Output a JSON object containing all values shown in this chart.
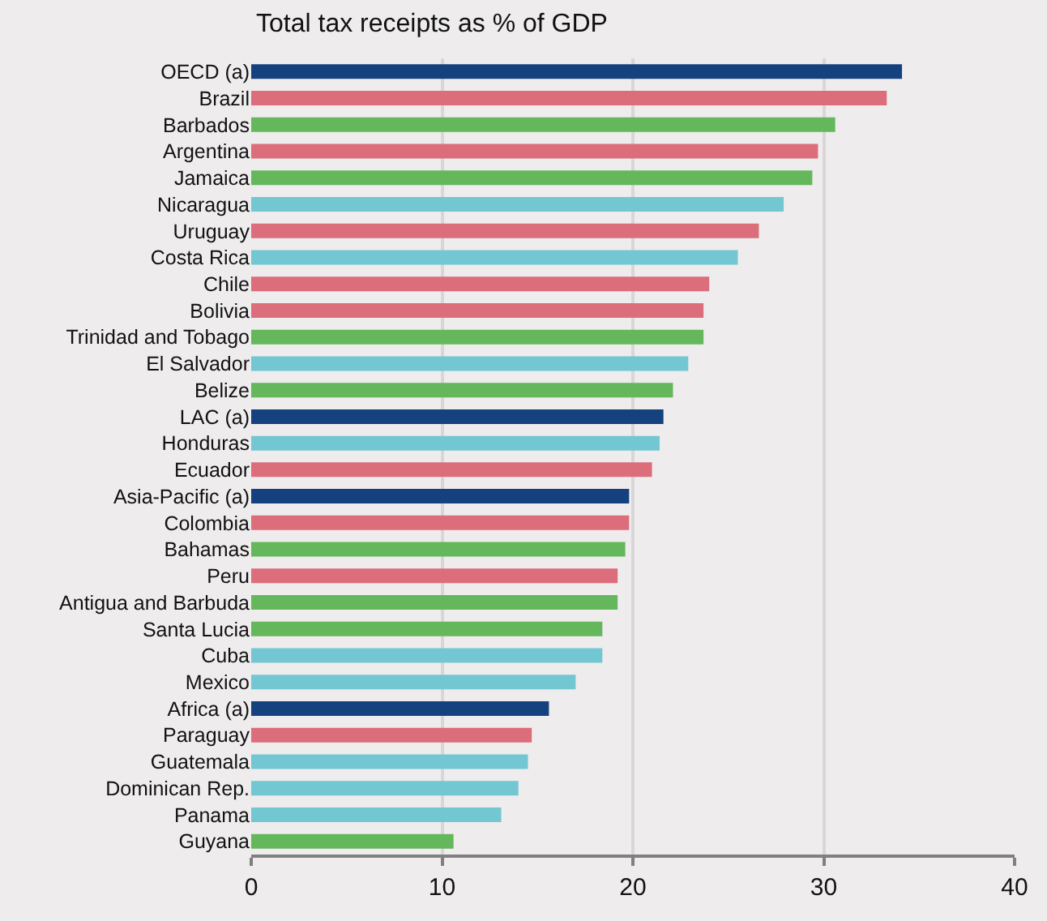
{
  "chart_data": {
    "type": "bar",
    "orientation": "horizontal",
    "title": "Total tax receipts as % of GDP",
    "categories": [
      "OECD (a)",
      "Brazil",
      "Barbados",
      "Argentina",
      "Jamaica",
      "Nicaragua",
      "Uruguay",
      "Costa Rica",
      "Chile",
      "Bolivia",
      "Trinidad and Tobago",
      "El Salvador",
      "Belize",
      "LAC (a)",
      "Honduras",
      "Ecuador",
      "Asia-Pacific (a)",
      "Colombia",
      "Bahamas",
      "Peru",
      "Antigua and Barbuda",
      "Santa Lucia",
      "Cuba",
      "Mexico",
      "Africa (a)",
      "Paraguay",
      "Guatemala",
      "Dominican Rep.",
      "Panama",
      "Guyana"
    ],
    "values": [
      34.1,
      33.3,
      30.6,
      29.7,
      29.4,
      27.9,
      26.6,
      25.5,
      24.0,
      23.7,
      23.7,
      22.9,
      22.1,
      21.6,
      21.4,
      21.0,
      19.8,
      19.8,
      19.6,
      19.2,
      19.2,
      18.4,
      18.4,
      17.0,
      15.6,
      14.7,
      14.5,
      14.0,
      13.1,
      10.6
    ],
    "colors": [
      "#15417e",
      "#dc6d7b",
      "#65b75b",
      "#dc6d7b",
      "#65b75b",
      "#72c7d2",
      "#dc6d7b",
      "#72c7d2",
      "#dc6d7b",
      "#dc6d7b",
      "#65b75b",
      "#72c7d2",
      "#65b75b",
      "#15417e",
      "#72c7d2",
      "#dc6d7b",
      "#15417e",
      "#dc6d7b",
      "#65b75b",
      "#dc6d7b",
      "#65b75b",
      "#65b75b",
      "#72c7d2",
      "#72c7d2",
      "#15417e",
      "#dc6d7b",
      "#72c7d2",
      "#72c7d2",
      "#72c7d2",
      "#65b75b"
    ],
    "xlim": [
      0,
      40
    ],
    "xticks": [
      0,
      10,
      20,
      30,
      40
    ],
    "grid": "x",
    "legend": false
  }
}
